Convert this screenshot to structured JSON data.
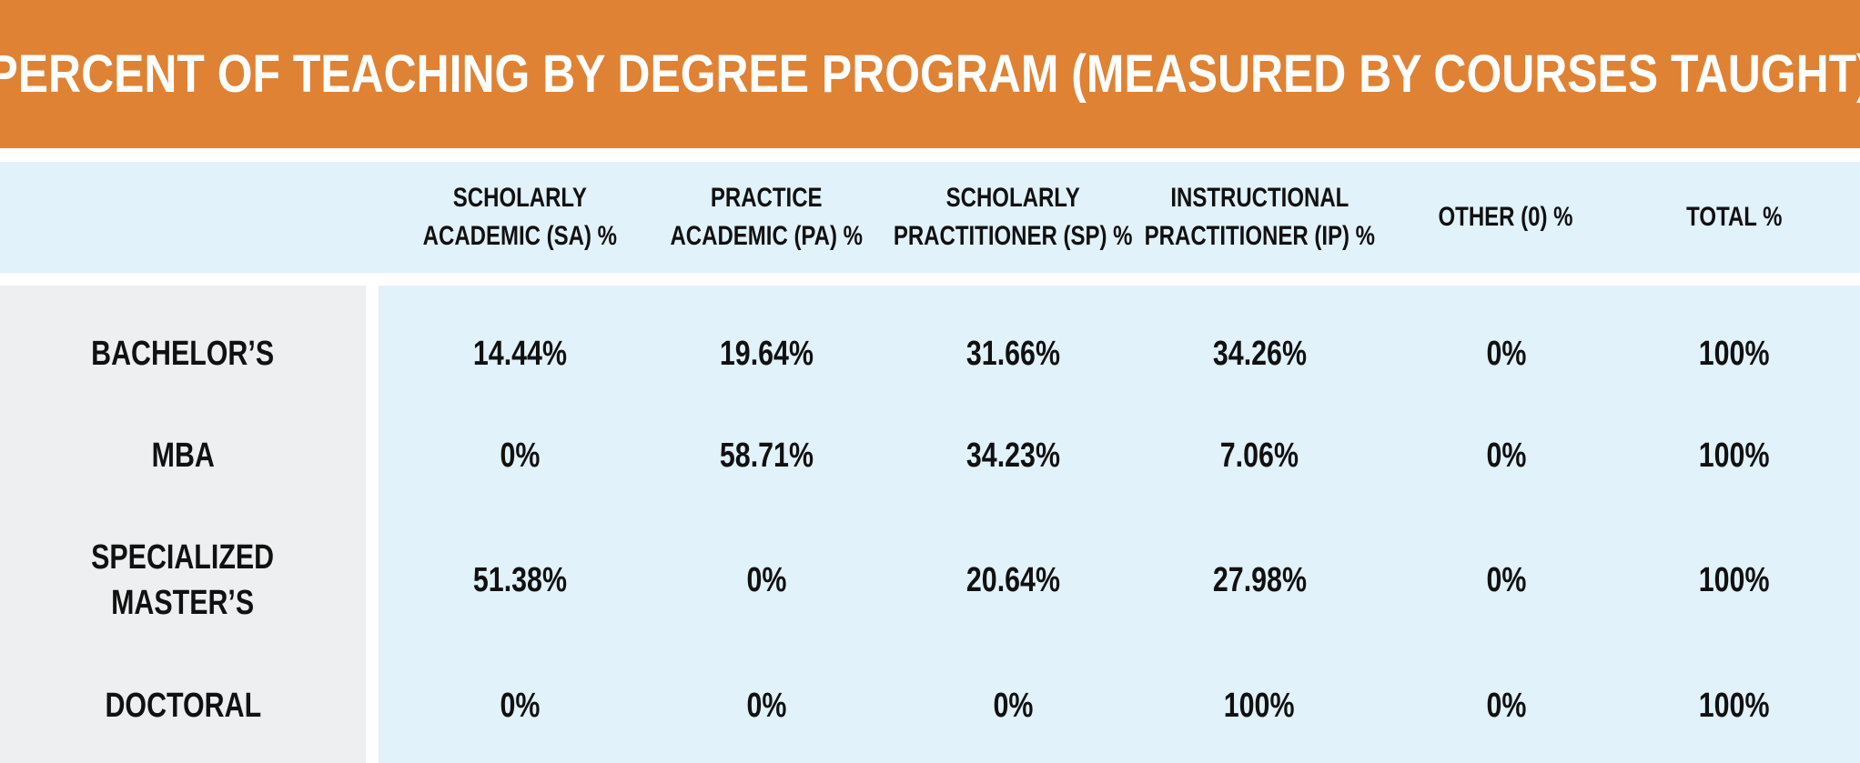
{
  "chart_data": {
    "type": "table",
    "title": "PERCENT OF TEACHING BY DEGREE PROGRAM (MEASURED BY COURSES TAUGHT)",
    "columns": [
      "SCHOLARLY\nACADEMIC (SA) %",
      "PRACTICE\nACADEMIC (PA) %",
      "SCHOLARLY\nPRACTITIONER (SP) %",
      "INSTRUCTIONAL\nPRACTITIONER (IP) %",
      "OTHER (0) %",
      "TOTAL %"
    ],
    "rows": [
      {
        "label": "BACHELOR’S",
        "values": [
          "14.44%",
          "19.64%",
          "31.66%",
          "34.26%",
          "0%",
          "100%"
        ]
      },
      {
        "label": "MBA",
        "values": [
          "0%",
          "58.71%",
          "34.23%",
          "7.06%",
          "0%",
          "100%"
        ]
      },
      {
        "label": "SPECIALIZED\nMASTER’S",
        "values": [
          "51.38%",
          "0%",
          "20.64%",
          "27.98%",
          "0%",
          "100%"
        ]
      },
      {
        "label": "DOCTORAL",
        "values": [
          "0%",
          "0%",
          "0%",
          "100%",
          "0%",
          "100%"
        ]
      }
    ]
  },
  "colors": {
    "title_bar": "#df8233",
    "title_text": "#ffffff",
    "header_band": "#e2f2fb",
    "label_panel": "#eeeff0",
    "data_panel": "#e2f2fb",
    "text": "#111111"
  }
}
